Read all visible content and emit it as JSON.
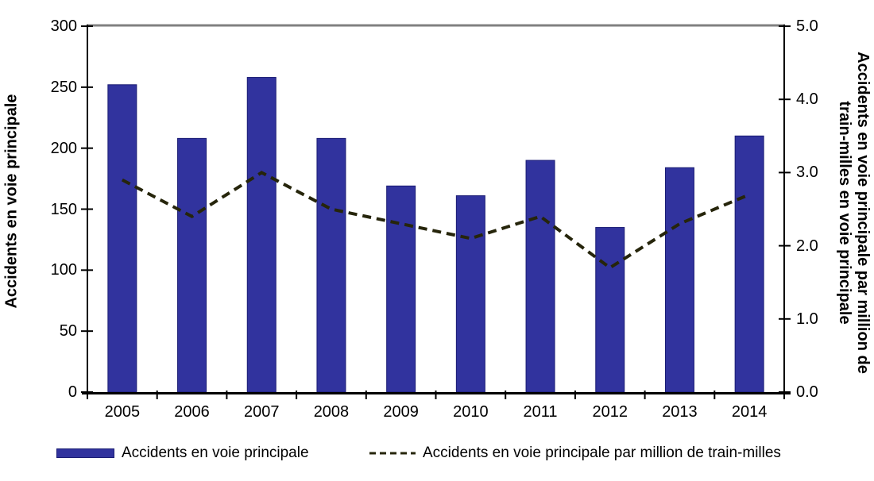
{
  "chart_data": {
    "type": "bar",
    "combo": "bar+dashed-line",
    "title": "",
    "categories": [
      "2005",
      "2006",
      "2007",
      "2008",
      "2009",
      "2010",
      "2011",
      "2012",
      "2013",
      "2014"
    ],
    "series": [
      {
        "name": "Accidents en voie principale",
        "type": "bar",
        "axis": "left",
        "values": [
          252,
          208,
          258,
          208,
          169,
          161,
          190,
          135,
          184,
          210
        ]
      },
      {
        "name": "Accidents en voie principale par million de train-milles",
        "type": "line",
        "style": "dashed",
        "axis": "right",
        "values": [
          2.9,
          2.4,
          3.0,
          2.5,
          2.3,
          2.1,
          2.4,
          1.7,
          2.3,
          2.7
        ]
      }
    ],
    "axis_left": {
      "label": "Accidents en voie principale",
      "min": 0,
      "max": 300,
      "step": 50
    },
    "axis_right": {
      "label_line1": "Accidents en voie principale par million de",
      "label_line2": "train-milles en voie principale",
      "min": 0,
      "max": 5,
      "step": 1,
      "decimals": 1
    },
    "legend_position": "bottom",
    "grid": "off"
  },
  "colors": {
    "bar_fill": "#31339e",
    "bar_border": "#1a1c74",
    "line": "#26250b",
    "axis": "#000000",
    "top_border": "#808080",
    "text": "#000000",
    "background": "#ffffff"
  }
}
